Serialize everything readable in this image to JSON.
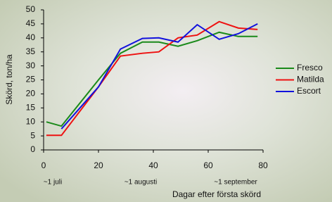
{
  "chart_data": {
    "type": "line",
    "xlabel": "Dagar efter första skörd",
    "ylabel": "Skörd, ton/ha",
    "annotations": [
      "~1 juli",
      "~1 augusti",
      "~1 september"
    ],
    "x": [
      1,
      6.5,
      20,
      28,
      36,
      42,
      49,
      56,
      64,
      71,
      78
    ],
    "series": [
      {
        "name": "Fresco",
        "color": "#1a8a1a",
        "values": [
          10,
          8.5,
          25,
          34.5,
          38.5,
          38.5,
          37,
          39,
          42,
          40.5,
          40.5
        ]
      },
      {
        "name": "Matilda",
        "color": "#ee1111",
        "values": [
          5.2,
          5.2,
          22.5,
          33.5,
          34.5,
          35,
          40,
          41,
          45.8,
          43.5,
          43
        ]
      },
      {
        "name": "Escort",
        "color": "#1111dd",
        "values": [
          null,
          7.5,
          22.5,
          36,
          39.8,
          40,
          38.5,
          44.7,
          39.5,
          41.5,
          45
        ]
      }
    ],
    "xlim": [
      0,
      80
    ],
    "xticks": [
      0,
      20,
      40,
      60,
      80
    ],
    "ylim": [
      0,
      50
    ],
    "yticks": [
      0,
      5,
      10,
      15,
      20,
      25,
      30,
      35,
      40,
      45,
      50
    ],
    "grid": false,
    "legend": "right"
  }
}
